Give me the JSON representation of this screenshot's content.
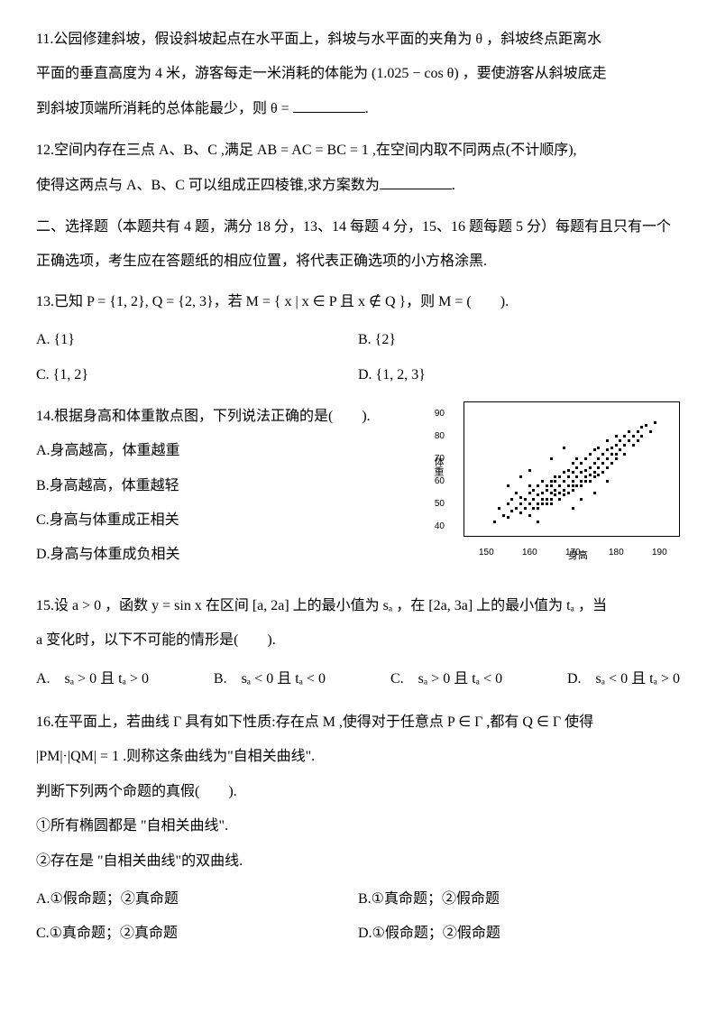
{
  "q11": {
    "line1": "11.公园修建斜坡，假设斜坡起点在水平面上，斜坡与水平面的夹角为 θ ，斜坡终点距离水",
    "line2": "平面的垂直高度为 4 米，游客每走一米消耗的体能为 (1.025 − cos θ) ，要使游客从斜坡底走",
    "line3": "到斜坡顶端所消耗的总体能最少，则 θ = ",
    "line3_end": "."
  },
  "q12": {
    "line1": "12.空间内存在三点 A、B、C ,满足 AB = AC = BC = 1 ,在空间内取不同两点(不计顺序),",
    "line2": "使得这两点与 A、B、C 可以组成正四棱锥,求方案数为",
    "line2_end": "."
  },
  "section2": "二、选择题（本题共有 4 题，满分 18 分，13、14 每题 4 分，15、16 题每题 5 分）每题有且只有一个正确选项，考生应在答题纸的相应位置，将代表正确选项的小方格涂黑.",
  "q13": {
    "stem": "13.已知 P = {1, 2}, Q = {2, 3}，若 M = { x | x ∈ P 且 x ∉ Q }，则 M = (　　).",
    "A": "A. {1}",
    "B": "B. {2}",
    "C": "C. {1, 2}",
    "D": "D. {1, 2, 3}"
  },
  "q14": {
    "stem": "14.根据身高和体重散点图，下列说法正确的是(　　).",
    "A": "A.身高越高，体重越重",
    "B": "B.身高越高，体重越轻",
    "C": "C.身高与体重成正相关",
    "D": "D.身高与体重成负相关",
    "scatter": {
      "y_ticks": [
        40,
        50,
        60,
        70,
        80,
        90
      ],
      "y_range": [
        35,
        95
      ],
      "x_ticks": [
        150,
        160,
        170,
        180,
        190
      ],
      "x_range": [
        145,
        195
      ],
      "y_title": "体重",
      "x_title": "身高",
      "points": [
        [
          152,
          42
        ],
        [
          153,
          48
        ],
        [
          154,
          45
        ],
        [
          155,
          50
        ],
        [
          155,
          44
        ],
        [
          156,
          52
        ],
        [
          156,
          47
        ],
        [
          157,
          48
        ],
        [
          157,
          55
        ],
        [
          158,
          50
        ],
        [
          158,
          46
        ],
        [
          158,
          53
        ],
        [
          159,
          52
        ],
        [
          159,
          48
        ],
        [
          160,
          50
        ],
        [
          160,
          55
        ],
        [
          160,
          45
        ],
        [
          160,
          58
        ],
        [
          161,
          52
        ],
        [
          161,
          48
        ],
        [
          161,
          56
        ],
        [
          162,
          54
        ],
        [
          162,
          50
        ],
        [
          162,
          58
        ],
        [
          162,
          48
        ],
        [
          163,
          55
        ],
        [
          163,
          52
        ],
        [
          163,
          60
        ],
        [
          163,
          50
        ],
        [
          164,
          56
        ],
        [
          164,
          52
        ],
        [
          164,
          58
        ],
        [
          164,
          50
        ],
        [
          165,
          55
        ],
        [
          165,
          58
        ],
        [
          165,
          52
        ],
        [
          165,
          60
        ],
        [
          165,
          50
        ],
        [
          166,
          56
        ],
        [
          166,
          60
        ],
        [
          166,
          54
        ],
        [
          166,
          62
        ],
        [
          167,
          58
        ],
        [
          167,
          55
        ],
        [
          167,
          62
        ],
        [
          167,
          52
        ],
        [
          168,
          60
        ],
        [
          168,
          56
        ],
        [
          168,
          64
        ],
        [
          168,
          54
        ],
        [
          169,
          62
        ],
        [
          169,
          58
        ],
        [
          169,
          65
        ],
        [
          169,
          55
        ],
        [
          170,
          60
        ],
        [
          170,
          64
        ],
        [
          170,
          58
        ],
        [
          170,
          68
        ],
        [
          170,
          56
        ],
        [
          171,
          62
        ],
        [
          171,
          66
        ],
        [
          171,
          58
        ],
        [
          171,
          70
        ],
        [
          172,
          64
        ],
        [
          172,
          60
        ],
        [
          172,
          68
        ],
        [
          172,
          58
        ],
        [
          173,
          65
        ],
        [
          173,
          62
        ],
        [
          173,
          70
        ],
        [
          173,
          60
        ],
        [
          174,
          66
        ],
        [
          174,
          63
        ],
        [
          174,
          72
        ],
        [
          174,
          60
        ],
        [
          175,
          68
        ],
        [
          175,
          64
        ],
        [
          175,
          74
        ],
        [
          175,
          62
        ],
        [
          176,
          70
        ],
        [
          176,
          66
        ],
        [
          176,
          75
        ],
        [
          176,
          63
        ],
        [
          177,
          72
        ],
        [
          177,
          68
        ],
        [
          177,
          64
        ],
        [
          178,
          74
        ],
        [
          178,
          70
        ],
        [
          178,
          66
        ],
        [
          178,
          78
        ],
        [
          179,
          75
        ],
        [
          179,
          72
        ],
        [
          179,
          68
        ],
        [
          180,
          76
        ],
        [
          180,
          72
        ],
        [
          180,
          80
        ],
        [
          180,
          70
        ],
        [
          181,
          78
        ],
        [
          181,
          74
        ],
        [
          182,
          80
        ],
        [
          182,
          76
        ],
        [
          182,
          72
        ],
        [
          183,
          78
        ],
        [
          183,
          82
        ],
        [
          184,
          80
        ],
        [
          184,
          76
        ],
        [
          185,
          82
        ],
        [
          185,
          78
        ],
        [
          186,
          84
        ],
        [
          186,
          80
        ],
        [
          187,
          85
        ],
        [
          188,
          82
        ],
        [
          189,
          86
        ],
        [
          158,
          62
        ],
        [
          162,
          42
        ],
        [
          170,
          48
        ],
        [
          175,
          55
        ],
        [
          168,
          75
        ],
        [
          160,
          65
        ],
        [
          155,
          58
        ],
        [
          172,
          52
        ],
        [
          178,
          60
        ],
        [
          165,
          70
        ]
      ]
    }
  },
  "q15": {
    "line1": "15.设 a > 0 ，函数 y = sin x 在区间 [a, 2a] 上的最小值为 sₐ ，在 [2a, 3a] 上的最小值为 tₐ ，当",
    "line2": "a 变化时，以下不可能的情形是(　　).",
    "A": "A.　sₐ > 0 且 tₐ > 0",
    "B": "B.　sₐ < 0 且 tₐ < 0",
    "C": "C.　sₐ > 0 且 tₐ < 0",
    "D": "D.　sₐ < 0 且 tₐ > 0"
  },
  "q16": {
    "line1": "16.在平面上，若曲线 Γ 具有如下性质:存在点 M ,使得对于任意点 P ∈ Γ ,都有 Q ∈ Γ 使得",
    "line2": "|PM|·|QM| = 1 .则称这条曲线为\"自相关曲线\".",
    "line3": "判断下列两个命题的真假(　　).",
    "p1": "①所有椭圆都是 \"自相关曲线\".",
    "p2": "②存在是 \"自相关曲线\"的双曲线.",
    "A": "A.①假命题；②真命题",
    "B": "B.①真命题；②假命题",
    "C": "C.①真命题；②真命题",
    "D": "D.①假命题；②假命题"
  }
}
